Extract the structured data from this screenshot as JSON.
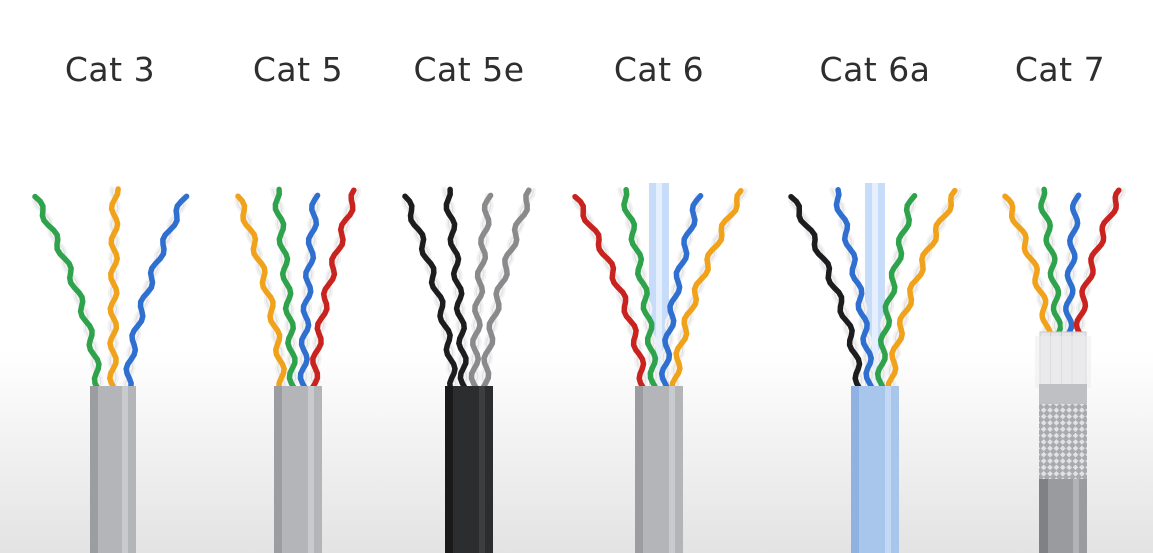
{
  "cables": [
    {
      "label": "Cat 3",
      "jacket": "grey",
      "pairs": [
        "green",
        "orange",
        "blue"
      ],
      "filler": false,
      "shield": "none"
    },
    {
      "label": "Cat 5",
      "jacket": "grey",
      "pairs": [
        "orange",
        "green",
        "blue",
        "red"
      ],
      "filler": false,
      "shield": "none"
    },
    {
      "label": "Cat 5e",
      "jacket": "black",
      "pairs": [
        "black",
        "black",
        "grey",
        "grey"
      ],
      "filler": false,
      "shield": "none"
    },
    {
      "label": "Cat 6",
      "jacket": "grey",
      "pairs": [
        "red",
        "green",
        "blue",
        "orange"
      ],
      "filler": true,
      "shield": "none"
    },
    {
      "label": "Cat 6a",
      "jacket": "blue",
      "pairs": [
        "black",
        "blue",
        "green",
        "orange"
      ],
      "filler": true,
      "shield": "none"
    },
    {
      "label": "Cat 7",
      "jacket": "grey",
      "pairs": [
        "orange",
        "green",
        "blue",
        "red"
      ],
      "filler": false,
      "shield": "braided-foil"
    }
  ],
  "colors": {
    "green": "#2fa34b",
    "orange": "#f0a21a",
    "blue": "#2f6fcf",
    "red": "#c9231f",
    "black": "#1d1d1f",
    "grey": "#8a8a8d",
    "white_stripe": "#f2f2f2",
    "jacket_grey": "#b4b5b8",
    "jacket_black": "#2c2d2f",
    "jacket_blue": "#a8c6ec",
    "filler": "#bcd6f7"
  }
}
